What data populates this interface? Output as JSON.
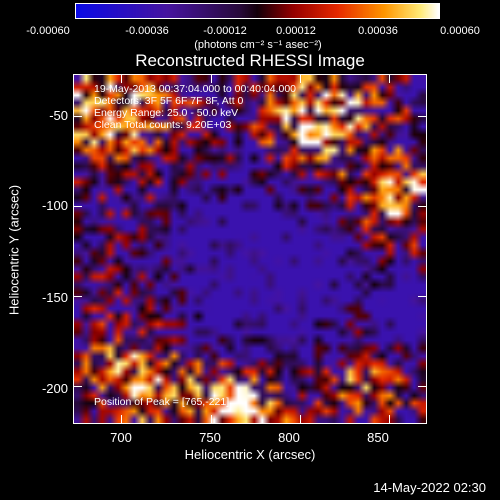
{
  "colorbar": {
    "tick_labels": [
      "-0.00060",
      "-0.00036",
      "-0.00012",
      "0.00012",
      "0.00036",
      "0.00060"
    ],
    "units": "(photons cm⁻² s⁻¹ asec⁻²)",
    "range": [
      -0.0006,
      0.0006
    ]
  },
  "title": "Reconstructed RHESSI Image",
  "annotations": {
    "time": "19-May-2013 00:37:04.000 to 00:40:04.000",
    "detectors": "Detectors: 3F 5F 6F 7F 8F, Att 0",
    "energy": "Energy Range: 25.0 - 50.0 keV",
    "clean": "Clean    Total counts: 9.20E+03",
    "peak": "Position of Peak = [765,-221]"
  },
  "axes": {
    "xlabel": "Heliocentric X (arcsec)",
    "ylabel": "Heliocentric Y (arcsec)",
    "x_ticks": [
      "700",
      "750",
      "800",
      "850"
    ],
    "y_ticks": [
      "-50",
      "-100",
      "-150",
      "-200"
    ],
    "xlim": [
      683,
      877
    ],
    "ylim": [
      -220,
      -27
    ]
  },
  "footer_date": "14-May-2022 02:30"
}
